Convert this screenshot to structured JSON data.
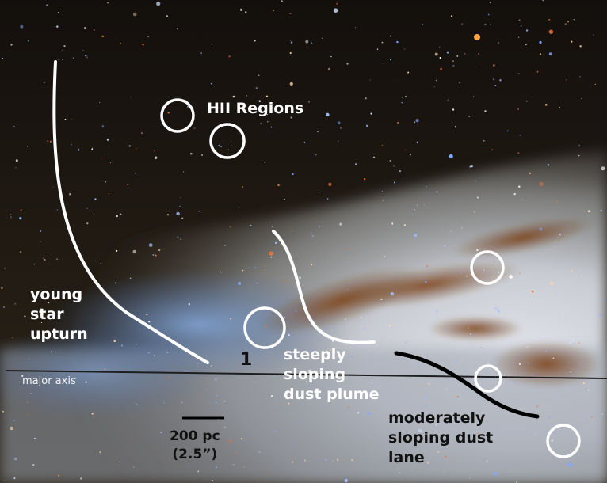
{
  "image": {
    "description_colors": {
      "sky": "#1a1410",
      "disk_light": "#c9cdd8",
      "disk_blue": "#5e86c0",
      "dust": "#8a4a1c",
      "annotation_white": "#ffffff",
      "annotation_black": "#111111"
    }
  },
  "labels": {
    "hii_regions": "HII Regions",
    "young_star_upturn": [
      "young",
      "star",
      "upturn"
    ],
    "major_axis": "major axis",
    "marker_1": "1",
    "steep_plume": [
      "steeply",
      "sloping",
      "dust plume"
    ],
    "moderate_lane": [
      "moderately",
      "sloping dust",
      "lane"
    ],
    "scale_bar": [
      "200 pc",
      "(2.5”)"
    ]
  },
  "annotations": {
    "circle_count": 6,
    "icons": [
      "circle-marker-icon",
      "curve-annotation-icon",
      "scale-bar-icon"
    ]
  }
}
